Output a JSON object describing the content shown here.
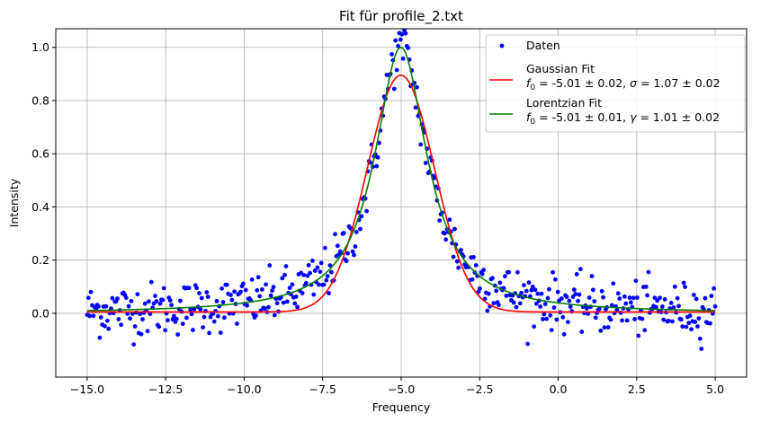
{
  "chart_data": {
    "type": "scatter",
    "title": "Fit für profile_2.txt",
    "xlabel": "Frequency",
    "ylabel": "Intensity",
    "xlim": [
      -16.0,
      6.0
    ],
    "ylim": [
      -0.24,
      1.07
    ],
    "grid": true,
    "legend_placement": "top-right",
    "x_ticks": [
      -15.0,
      -12.5,
      -10.0,
      -7.5,
      -5.0,
      -2.5,
      0.0,
      2.5,
      5.0
    ],
    "x_tick_labels": [
      "−15.0",
      "−12.5",
      "−10.0",
      "−7.5",
      "−5.0",
      "−2.5",
      "0.0",
      "2.5",
      "5.0"
    ],
    "y_ticks": [
      0.0,
      0.2,
      0.4,
      0.6,
      0.8,
      1.0
    ],
    "y_tick_labels": [
      "0.0",
      "0.2",
      "0.4",
      "0.6",
      "0.8",
      "1.0"
    ],
    "series": [
      {
        "name": "Daten",
        "kind": "scatter",
        "color": "#0000ff",
        "x_range": [
          -15.0,
          5.0
        ],
        "n_points": 500,
        "noise_sd": 0.05,
        "underlying": {
          "f0": -5.01,
          "gamma": 1.01,
          "amplitude": 1.0,
          "baseline": 0.0
        }
      },
      {
        "name": "Gaussian Fit",
        "kind": "line",
        "color": "#ff0000",
        "params": {
          "f0": -5.01,
          "f0_err": 0.02,
          "sigma": 1.07,
          "sigma_err": 0.02,
          "amplitude": 0.89,
          "baseline": 0.005
        },
        "label_line2": "= -5.01 ± 0.02,  = 1.07 ± 0.02"
      },
      {
        "name": "Lorentzian Fit",
        "kind": "line",
        "color": "#008000",
        "params": {
          "f0": -5.01,
          "f0_err": 0.01,
          "gamma": 1.01,
          "gamma_err": 0.02,
          "amplitude": 1.0,
          "baseline": 0.0
        },
        "label_line2": "= -5.01 ± 0.01,  = 1.01 ± 0.02"
      }
    ],
    "legend": [
      {
        "label": "Daten"
      },
      {
        "label": "Gaussian Fit",
        "line2_parts": [
          "f",
          "0",
          " = -5.01 ± 0.02, ",
          "σ",
          " = 1.07 ± 0.02"
        ]
      },
      {
        "label": "Lorentzian Fit",
        "line2_parts": [
          "f",
          "0",
          " = -5.01 ± 0.01, ",
          "γ",
          " = 1.01 ± 0.02"
        ]
      }
    ]
  }
}
